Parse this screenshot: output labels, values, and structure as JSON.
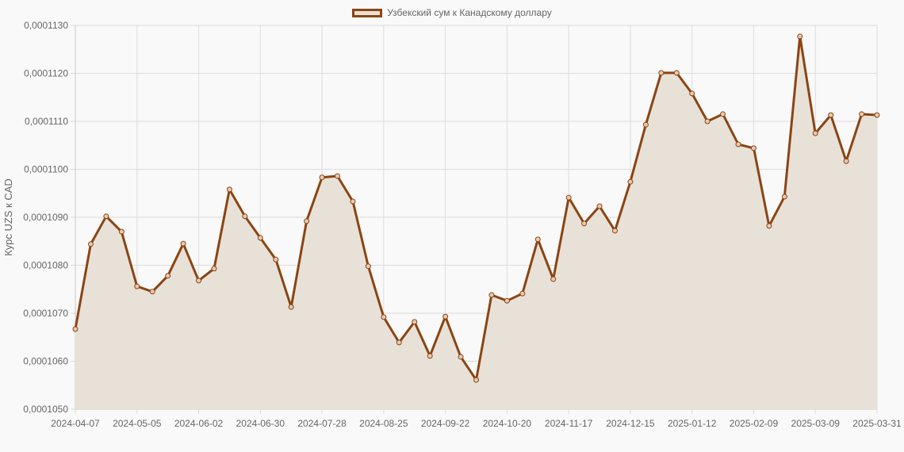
{
  "legend": {
    "label": "Узбекский сум к Канадскому доллару",
    "color": "#8b4513",
    "fill": "#e8e1d8"
  },
  "y_axis_title": "Курс UZS к CAD",
  "chart_data": {
    "type": "line",
    "title": "",
    "xlabel": "",
    "ylabel": "Курс UZS к CAD",
    "ylim": [
      0.000105,
      0.000113
    ],
    "yticks": [
      "0,0001050",
      "0,0001060",
      "0,0001070",
      "0,0001080",
      "0,0001090",
      "0,0001100",
      "0,0001110",
      "0,0001120",
      "0,0001130"
    ],
    "xtick_labels": [
      "2024-04-07",
      "2024-05-05",
      "2024-06-02",
      "2024-06-30",
      "2024-07-28",
      "2024-08-25",
      "2024-09-22",
      "2024-10-20",
      "2024-11-17",
      "2024-12-15",
      "2025-01-12",
      "2025-02-09",
      "2025-03-09",
      "2025-03-31"
    ],
    "grid": true,
    "legend_position": "top",
    "series": [
      {
        "name": "Узбекский сум к Канадскому доллару",
        "color": "#8b4513",
        "fill": true,
        "x": [
          "2024-04-07",
          "2024-04-14",
          "2024-04-21",
          "2024-04-28",
          "2024-05-05",
          "2024-05-12",
          "2024-05-19",
          "2024-05-26",
          "2024-06-02",
          "2024-06-09",
          "2024-06-16",
          "2024-06-23",
          "2024-06-30",
          "2024-07-07",
          "2024-07-14",
          "2024-07-21",
          "2024-07-28",
          "2024-08-04",
          "2024-08-11",
          "2024-08-18",
          "2024-08-25",
          "2024-09-01",
          "2024-09-08",
          "2024-09-15",
          "2024-09-22",
          "2024-09-29",
          "2024-10-06",
          "2024-10-13",
          "2024-10-20",
          "2024-10-27",
          "2024-11-03",
          "2024-11-10",
          "2024-11-17",
          "2024-11-24",
          "2024-12-01",
          "2024-12-08",
          "2024-12-15",
          "2024-12-22",
          "2024-12-29",
          "2025-01-05",
          "2025-01-12",
          "2025-01-19",
          "2025-01-26",
          "2025-02-02",
          "2025-02-09",
          "2025-02-16",
          "2025-02-23",
          "2025-03-02",
          "2025-03-09",
          "2025-03-16",
          "2025-03-23",
          "2025-03-30",
          "2025-03-31"
        ],
        "values": [
          0.00010667,
          0.00010844,
          0.00010902,
          0.0001087,
          0.00010756,
          0.00010745,
          0.00010778,
          0.00010845,
          0.00010768,
          0.00010793,
          0.00010958,
          0.00010902,
          0.00010857,
          0.00010812,
          0.00010713,
          0.00010892,
          0.00010983,
          0.00010986,
          0.00010933,
          0.00010798,
          0.00010692,
          0.00010639,
          0.00010682,
          0.00010611,
          0.00010693,
          0.00010609,
          0.00010561,
          0.00010738,
          0.00010726,
          0.00010741,
          0.00010854,
          0.00010771,
          0.00010941,
          0.00010887,
          0.00010923,
          0.00010872,
          0.00010974,
          0.00011093,
          0.00011201,
          0.00011201,
          0.00011158,
          0.000111,
          0.00011115,
          0.00011052,
          0.00011044,
          0.00010882,
          0.00010943,
          0.00011277,
          0.00011075,
          0.00011113,
          0.00011017,
          0.00011115,
          0.00011113
        ]
      }
    ]
  }
}
